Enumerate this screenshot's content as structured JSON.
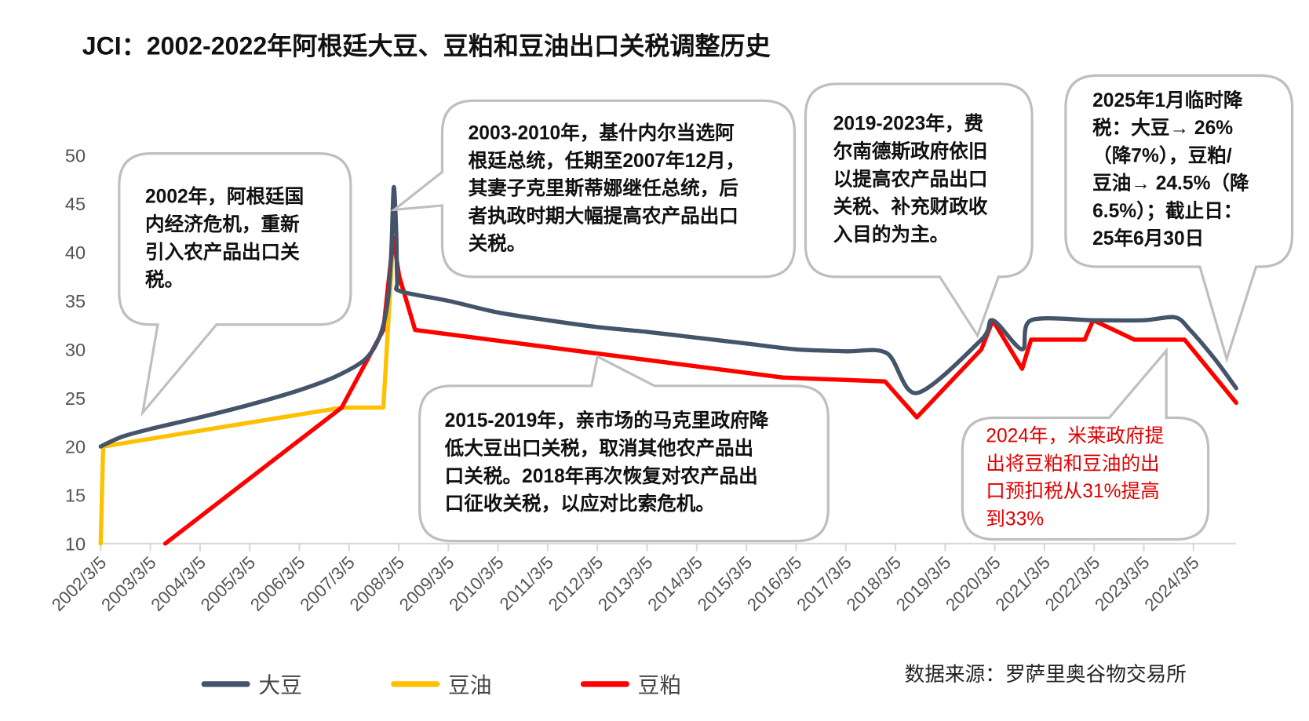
{
  "chart_data": {
    "type": "line",
    "title": "JCI：2002-2022年阿根廷大豆、豆粕和豆油出口关税调整历史",
    "xlabel": "",
    "ylabel": "",
    "ylim": [
      10,
      50
    ],
    "yticks": [
      "10",
      "15",
      "20",
      "25",
      "30",
      "35",
      "40",
      "45",
      "50"
    ],
    "xlim": [
      2002.17,
      2025.03
    ],
    "xticks": [
      "2002/3/5",
      "2003/3/5",
      "2004/3/5",
      "2005/3/5",
      "2006/3/5",
      "2007/3/5",
      "2008/3/5",
      "2009/3/5",
      "2010/3/5",
      "2011/3/5",
      "2012/3/5",
      "2013/3/5",
      "2014/3/5",
      "2015/3/5",
      "2016/3/5",
      "2017/3/5",
      "2018/3/5",
      "2019/3/5",
      "2020/3/5",
      "2021/3/5",
      "2022/3/5",
      "2023/3/5",
      "2024/3/5"
    ],
    "grid": false,
    "legend_position": "bottom-left",
    "series": [
      {
        "name": "大豆",
        "color": "#44546a",
        "smooth": true,
        "points": [
          [
            2002.17,
            20
          ],
          [
            2002.6,
            21
          ],
          [
            2003.17,
            21.8
          ],
          [
            2004.17,
            23
          ],
          [
            2005.17,
            24.3
          ],
          [
            2006.17,
            25.8
          ],
          [
            2006.9,
            27.2
          ],
          [
            2007.5,
            29
          ],
          [
            2007.8,
            31.5
          ],
          [
            2007.95,
            35
          ],
          [
            2008.02,
            40
          ],
          [
            2008.07,
            46.7
          ],
          [
            2008.12,
            42
          ],
          [
            2008.14,
            37
          ],
          [
            2008.2,
            36
          ],
          [
            2009.17,
            35
          ],
          [
            2010.17,
            33.8
          ],
          [
            2011.17,
            33
          ],
          [
            2012.17,
            32.3
          ],
          [
            2013.17,
            31.8
          ],
          [
            2014.17,
            31.2
          ],
          [
            2015.17,
            30.6
          ],
          [
            2016.17,
            30
          ],
          [
            2017.17,
            29.8
          ],
          [
            2018.0,
            29.6
          ],
          [
            2018.6,
            25.5
          ],
          [
            2019.9,
            31
          ],
          [
            2020.13,
            33
          ],
          [
            2020.72,
            30
          ],
          [
            2020.9,
            33
          ],
          [
            2022.17,
            33
          ],
          [
            2023.17,
            33
          ],
          [
            2023.8,
            33.3
          ],
          [
            2024.1,
            32
          ],
          [
            2024.6,
            29
          ],
          [
            2025.03,
            26
          ]
        ]
      },
      {
        "name": "豆油",
        "color": "#ffc000",
        "smooth": false,
        "points": [
          [
            2002.17,
            10
          ],
          [
            2002.22,
            20
          ],
          [
            2007.02,
            24
          ],
          [
            2007.86,
            24
          ],
          [
            2008.06,
            41.5
          ],
          [
            2008.18,
            37.5
          ],
          [
            2008.5,
            32
          ],
          [
            2015.9,
            27.1
          ],
          [
            2017.96,
            26.7
          ],
          [
            2018.6,
            23
          ],
          [
            2019.9,
            30
          ],
          [
            2020.13,
            33
          ],
          [
            2020.72,
            28
          ],
          [
            2020.9,
            31
          ],
          [
            2021.98,
            31
          ],
          [
            2022.15,
            33
          ],
          [
            2022.98,
            31
          ],
          [
            2023.99,
            31
          ],
          [
            2025.03,
            24.5
          ]
        ]
      },
      {
        "name": "豆粕",
        "color": "#ff0000",
        "smooth": false,
        "points": [
          [
            2003.47,
            10
          ],
          [
            2007.02,
            24
          ],
          [
            2007.86,
            32
          ],
          [
            2008.06,
            41.5
          ],
          [
            2008.18,
            37.5
          ],
          [
            2008.5,
            32
          ],
          [
            2015.9,
            27.1
          ],
          [
            2017.96,
            26.7
          ],
          [
            2018.6,
            23
          ],
          [
            2019.9,
            30
          ],
          [
            2020.13,
            33
          ],
          [
            2020.72,
            28
          ],
          [
            2020.9,
            31
          ],
          [
            2021.98,
            31
          ],
          [
            2022.15,
            33
          ],
          [
            2022.98,
            31
          ],
          [
            2023.99,
            31
          ],
          [
            2025.03,
            24.5
          ]
        ]
      }
    ],
    "annotations": [
      {
        "text": "2002年，阿根廷国\n内经济危机，重新\n引入农产品出口关\n税。",
        "color": "#111111"
      },
      {
        "text": "2003-2010年，基什内尔当选阿\n根廷总统，任期至2007年12月，\n其妻子克里斯蒂娜继任总统，后\n者执政时期大幅提高农产品出口\n关税。",
        "color": "#111111"
      },
      {
        "text": "2019-2023年，费\n尔南德斯政府依旧\n以提高农产品出口\n关税、补充财政收\n入目的为主。",
        "color": "#111111"
      },
      {
        "text": "2025年1月临时降\n税：大豆→ 26%\n（降7%），豆粕/\n豆油→ 24.5%（降\n6.5%）；截止日：\n25年6月30日",
        "color": "#111111"
      },
      {
        "text": "2015-2019年，亲市场的马克里政府降\n低大豆出口关税，取消其他农产品出\n口关税。2018年再次恢复对农产品出\n口征收关税，以应对比索危机。",
        "color": "#111111"
      },
      {
        "text": "2024年，米莱政府提\n出将豆粕和豆油的出\n口预扣税从31%提高\n到33%",
        "color": "#e00000"
      }
    ],
    "source": "数据来源：罗萨里奥谷物交易所"
  }
}
